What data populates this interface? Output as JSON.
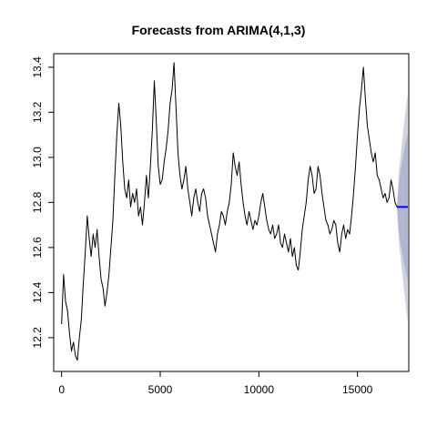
{
  "chart_data": {
    "type": "line",
    "title": "Forecasts from ARIMA(4,1,3)",
    "xlabel": "",
    "ylabel": "",
    "xlim": [
      -400,
      17600
    ],
    "ylim": [
      12.05,
      13.46
    ],
    "x_ticks": [
      0,
      5000,
      10000,
      15000
    ],
    "x_tick_labels": [
      "0",
      "5000",
      "10000",
      "15000"
    ],
    "y_ticks": [
      12.2,
      12.4,
      12.6,
      12.8,
      13.0,
      13.2,
      13.4
    ],
    "y_tick_labels": [
      "12.2",
      "12.4",
      "12.6",
      "12.8",
      "13.0",
      "13.2",
      "13.4"
    ],
    "grid": false,
    "legend": "none",
    "series": [
      {
        "role": "observed",
        "color": "#000000",
        "points": [
          [
            0,
            12.26
          ],
          [
            100,
            12.48
          ],
          [
            200,
            12.36
          ],
          [
            300,
            12.32
          ],
          [
            400,
            12.22
          ],
          [
            500,
            12.14
          ],
          [
            600,
            12.18
          ],
          [
            700,
            12.12
          ],
          [
            800,
            12.1
          ],
          [
            900,
            12.2
          ],
          [
            1000,
            12.28
          ],
          [
            1100,
            12.44
          ],
          [
            1200,
            12.58
          ],
          [
            1300,
            12.74
          ],
          [
            1400,
            12.64
          ],
          [
            1500,
            12.56
          ],
          [
            1600,
            12.66
          ],
          [
            1700,
            12.6
          ],
          [
            1800,
            12.68
          ],
          [
            1900,
            12.56
          ],
          [
            2000,
            12.46
          ],
          [
            2100,
            12.42
          ],
          [
            2200,
            12.34
          ],
          [
            2300,
            12.4
          ],
          [
            2400,
            12.48
          ],
          [
            2500,
            12.6
          ],
          [
            2600,
            12.72
          ],
          [
            2700,
            12.92
          ],
          [
            2800,
            13.1
          ],
          [
            2900,
            13.24
          ],
          [
            3000,
            13.14
          ],
          [
            3100,
            12.98
          ],
          [
            3200,
            12.86
          ],
          [
            3300,
            12.82
          ],
          [
            3400,
            12.9
          ],
          [
            3500,
            12.78
          ],
          [
            3600,
            12.84
          ],
          [
            3700,
            12.8
          ],
          [
            3800,
            12.86
          ],
          [
            3900,
            12.74
          ],
          [
            4000,
            12.78
          ],
          [
            4100,
            12.7
          ],
          [
            4200,
            12.8
          ],
          [
            4300,
            12.92
          ],
          [
            4400,
            12.82
          ],
          [
            4500,
            12.96
          ],
          [
            4600,
            13.12
          ],
          [
            4700,
            13.34
          ],
          [
            4800,
            13.16
          ],
          [
            4900,
            12.96
          ],
          [
            5000,
            12.88
          ],
          [
            5100,
            12.9
          ],
          [
            5200,
            12.98
          ],
          [
            5300,
            13.04
          ],
          [
            5400,
            13.12
          ],
          [
            5500,
            13.24
          ],
          [
            5600,
            13.3
          ],
          [
            5700,
            13.42
          ],
          [
            5800,
            13.22
          ],
          [
            5900,
            13.02
          ],
          [
            6000,
            12.92
          ],
          [
            6100,
            12.86
          ],
          [
            6200,
            12.9
          ],
          [
            6300,
            12.96
          ],
          [
            6400,
            12.86
          ],
          [
            6500,
            12.8
          ],
          [
            6600,
            12.74
          ],
          [
            6700,
            12.82
          ],
          [
            6800,
            12.86
          ],
          [
            6900,
            12.8
          ],
          [
            7000,
            12.76
          ],
          [
            7100,
            12.84
          ],
          [
            7200,
            12.86
          ],
          [
            7300,
            12.82
          ],
          [
            7400,
            12.74
          ],
          [
            7500,
            12.7
          ],
          [
            7600,
            12.66
          ],
          [
            7700,
            12.62
          ],
          [
            7800,
            12.58
          ],
          [
            7900,
            12.66
          ],
          [
            8000,
            12.7
          ],
          [
            8100,
            12.76
          ],
          [
            8200,
            12.74
          ],
          [
            8300,
            12.7
          ],
          [
            8400,
            12.76
          ],
          [
            8500,
            12.8
          ],
          [
            8600,
            12.88
          ],
          [
            8700,
            13.02
          ],
          [
            8800,
            12.96
          ],
          [
            8900,
            12.92
          ],
          [
            9000,
            12.98
          ],
          [
            9100,
            12.88
          ],
          [
            9200,
            12.8
          ],
          [
            9300,
            12.74
          ],
          [
            9400,
            12.7
          ],
          [
            9500,
            12.76
          ],
          [
            9600,
            12.72
          ],
          [
            9700,
            12.68
          ],
          [
            9800,
            12.72
          ],
          [
            9900,
            12.7
          ],
          [
            10000,
            12.74
          ],
          [
            10100,
            12.8
          ],
          [
            10200,
            12.84
          ],
          [
            10300,
            12.78
          ],
          [
            10400,
            12.72
          ],
          [
            10500,
            12.68
          ],
          [
            10600,
            12.66
          ],
          [
            10700,
            12.7
          ],
          [
            10800,
            12.64
          ],
          [
            10900,
            12.66
          ],
          [
            11000,
            12.7
          ],
          [
            11100,
            12.62
          ],
          [
            11200,
            12.6
          ],
          [
            11300,
            12.66
          ],
          [
            11400,
            12.62
          ],
          [
            11500,
            12.58
          ],
          [
            11600,
            12.64
          ],
          [
            11700,
            12.56
          ],
          [
            11800,
            12.6
          ],
          [
            11900,
            12.52
          ],
          [
            12000,
            12.5
          ],
          [
            12100,
            12.58
          ],
          [
            12200,
            12.68
          ],
          [
            12300,
            12.74
          ],
          [
            12400,
            12.8
          ],
          [
            12500,
            12.9
          ],
          [
            12600,
            12.96
          ],
          [
            12700,
            12.92
          ],
          [
            12800,
            12.84
          ],
          [
            12900,
            12.86
          ],
          [
            13000,
            12.96
          ],
          [
            13100,
            12.92
          ],
          [
            13200,
            12.84
          ],
          [
            13300,
            12.78
          ],
          [
            13400,
            12.72
          ],
          [
            13500,
            12.7
          ],
          [
            13600,
            12.66
          ],
          [
            13700,
            12.68
          ],
          [
            13800,
            12.72
          ],
          [
            13900,
            12.7
          ],
          [
            14000,
            12.62
          ],
          [
            14100,
            12.58
          ],
          [
            14200,
            12.66
          ],
          [
            14300,
            12.7
          ],
          [
            14400,
            12.64
          ],
          [
            14500,
            12.68
          ],
          [
            14600,
            12.66
          ],
          [
            14700,
            12.74
          ],
          [
            14800,
            12.84
          ],
          [
            14900,
            12.96
          ],
          [
            15000,
            13.1
          ],
          [
            15100,
            13.22
          ],
          [
            15200,
            13.3
          ],
          [
            15300,
            13.4
          ],
          [
            15400,
            13.26
          ],
          [
            15500,
            13.14
          ],
          [
            15600,
            13.08
          ],
          [
            15700,
            13.02
          ],
          [
            15800,
            12.98
          ],
          [
            15900,
            13.02
          ],
          [
            16000,
            12.92
          ],
          [
            16100,
            12.9
          ],
          [
            16200,
            12.86
          ],
          [
            16300,
            12.82
          ],
          [
            16400,
            12.84
          ],
          [
            16500,
            12.8
          ],
          [
            16600,
            12.82
          ],
          [
            16700,
            12.9
          ],
          [
            16800,
            12.86
          ],
          [
            16900,
            12.8
          ],
          [
            17000,
            12.78
          ]
        ]
      },
      {
        "role": "point forecast",
        "color": "#0000ff",
        "x": [
          17000,
          17550
        ],
        "values": [
          12.78,
          12.78
        ]
      }
    ],
    "intervals": [
      {
        "level": "outer",
        "color": "#d3d3de",
        "x": [
          17000,
          17100,
          17200,
          17300,
          17400,
          17500,
          17550
        ],
        "lower": [
          12.78,
          12.62,
          12.54,
          12.46,
          12.38,
          12.3,
          12.27
        ],
        "upper": [
          12.78,
          12.94,
          13.02,
          13.1,
          13.18,
          13.25,
          13.28
        ]
      },
      {
        "level": "inner",
        "color": "#b1b5cf",
        "x": [
          17000,
          17100,
          17200,
          17300,
          17400,
          17500,
          17550
        ],
        "lower": [
          12.78,
          12.67,
          12.61,
          12.56,
          12.51,
          12.47,
          12.45
        ],
        "upper": [
          12.78,
          12.89,
          12.95,
          13.0,
          13.05,
          13.09,
          13.11
        ]
      }
    ]
  }
}
